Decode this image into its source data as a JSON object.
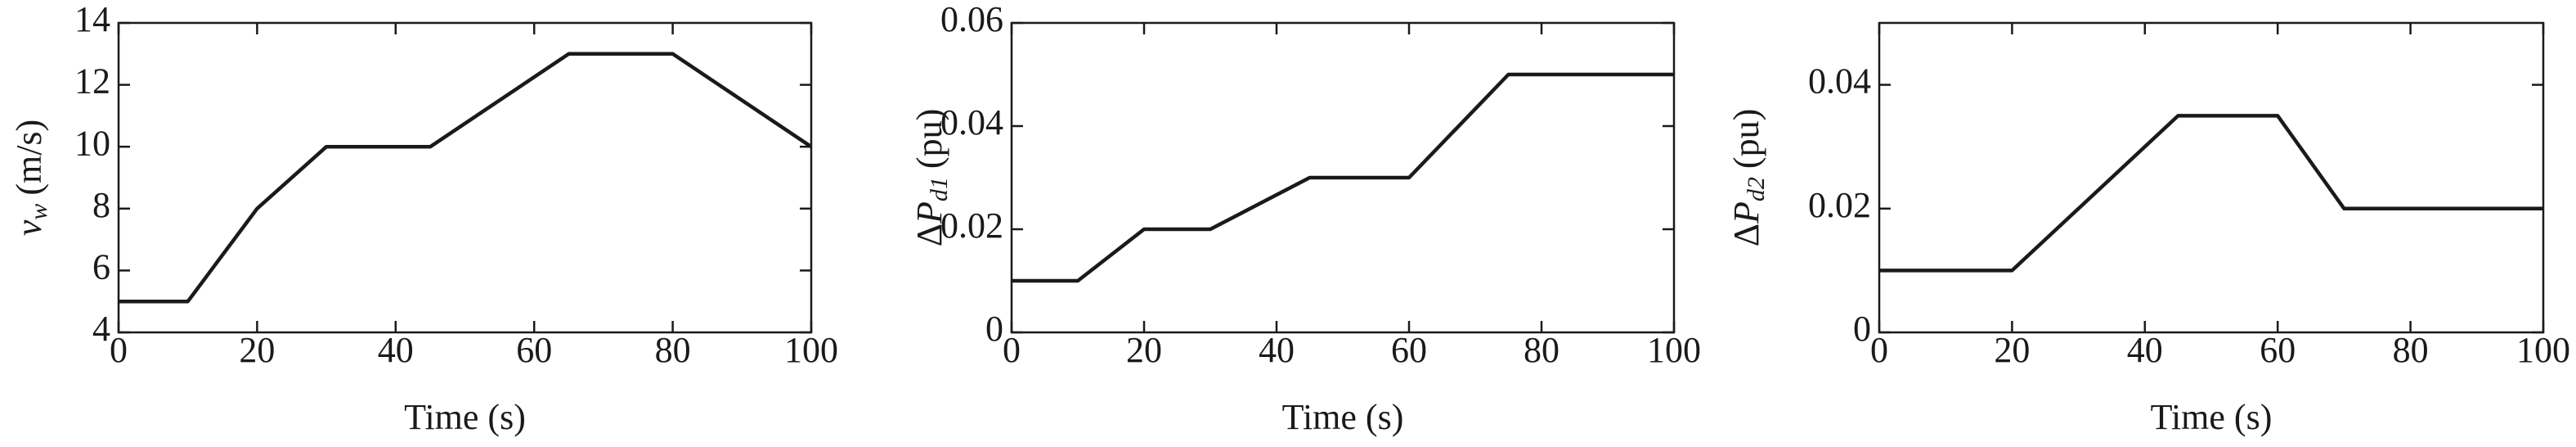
{
  "chart_data": [
    {
      "type": "line",
      "ylabel": {
        "symbol": "v",
        "subscript": "w",
        "unit": "(m/s)"
      },
      "xlabel": "Time (s)",
      "x": [
        0,
        10,
        20,
        30,
        45,
        65,
        80,
        100
      ],
      "values": [
        5,
        5,
        8,
        10,
        10,
        13,
        13,
        10
      ],
      "color": "#1a1a1a",
      "xlim": [
        0,
        100
      ],
      "xticks": [
        0,
        20,
        40,
        60,
        80,
        100
      ],
      "ylim": [
        4,
        14
      ],
      "yticks": [
        4,
        6,
        8,
        10,
        12,
        14
      ]
    },
    {
      "type": "line",
      "ylabel": {
        "prefix": "Δ",
        "symbol": "P",
        "subscript": "d1",
        "unit": "(pu)"
      },
      "xlabel": "Time (s)",
      "x": [
        0,
        10,
        20,
        30,
        45,
        60,
        75,
        100
      ],
      "values": [
        0.01,
        0.01,
        0.02,
        0.02,
        0.03,
        0.03,
        0.05,
        0.05
      ],
      "color": "#1a1a1a",
      "xlim": [
        0,
        100
      ],
      "xticks": [
        0,
        20,
        40,
        60,
        80,
        100
      ],
      "ylim": [
        0,
        0.06
      ],
      "yticks": [
        0,
        0.02,
        0.04,
        0.06
      ]
    },
    {
      "type": "line",
      "ylabel": {
        "prefix": "Δ",
        "symbol": "P",
        "subscript": "d2",
        "unit": "(pu)"
      },
      "xlabel": "Time (s)",
      "x": [
        0,
        20,
        45,
        60,
        70,
        100
      ],
      "values": [
        0.01,
        0.01,
        0.035,
        0.035,
        0.02,
        0.02
      ],
      "color": "#1a1a1a",
      "xlim": [
        0,
        100
      ],
      "xticks": [
        0,
        20,
        40,
        60,
        80,
        100
      ],
      "ylim": [
        0,
        0.05
      ],
      "yticks": [
        0,
        0.02,
        0.04
      ]
    }
  ]
}
